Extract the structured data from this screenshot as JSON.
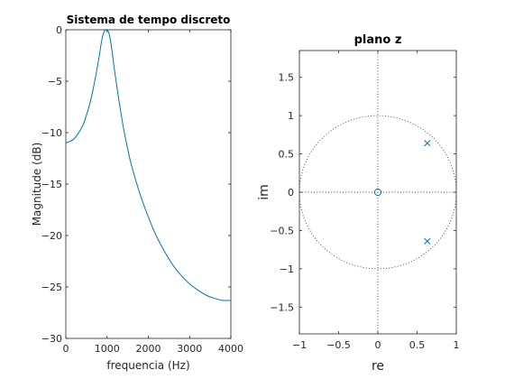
{
  "chart_data": [
    {
      "type": "line",
      "title": "Sistema de tempo discreto",
      "xlabel": "frequencia (Hz)",
      "ylabel": "Magnitude (dB)",
      "xlim": [
        0,
        4000
      ],
      "ylim": [
        -30,
        0
      ],
      "xticks": [
        0,
        1000,
        2000,
        3000,
        4000
      ],
      "yticks": [
        0,
        -5,
        -10,
        -15,
        -20,
        -25,
        -30
      ],
      "grid": false,
      "series": [
        {
          "color": "#0072bd",
          "x": [
            0,
            200,
            400,
            500,
            600,
            700,
            800,
            850,
            900,
            950,
            1000,
            1050,
            1100,
            1150,
            1200,
            1300,
            1400,
            1500,
            1600,
            1800,
            2000,
            2200,
            2400,
            2600,
            2800,
            3000,
            3200,
            3400,
            3600,
            3800,
            4000
          ],
          "y": [
            -11.0,
            -10.6,
            -9.4,
            -8.3,
            -6.9,
            -5.0,
            -2.8,
            -1.5,
            -0.5,
            -0.05,
            0,
            -0.4,
            -1.5,
            -3.0,
            -4.5,
            -7.2,
            -9.6,
            -11.6,
            -13.3,
            -16.0,
            -18.2,
            -20.1,
            -21.6,
            -22.9,
            -23.9,
            -24.7,
            -25.3,
            -25.8,
            -26.1,
            -26.3,
            -26.3
          ]
        }
      ]
    },
    {
      "type": "scatter",
      "title": "plano z",
      "xlabel": "re",
      "ylabel": "im",
      "xlim": [
        -1,
        1
      ],
      "ylim": [
        -1.85,
        1.85
      ],
      "xticks": [
        -1,
        -0.5,
        0,
        0.5,
        1
      ],
      "yticks": [
        1.5,
        1,
        0.5,
        0,
        -0.5,
        -1,
        -1.5
      ],
      "grid": false,
      "unit_circle": true,
      "zeros": [
        {
          "re": 0,
          "im": 0
        }
      ],
      "poles": [
        {
          "re": 0.63,
          "im": 0.64
        },
        {
          "re": 0.63,
          "im": -0.64
        }
      ],
      "marker_color": "#0072bd"
    }
  ]
}
